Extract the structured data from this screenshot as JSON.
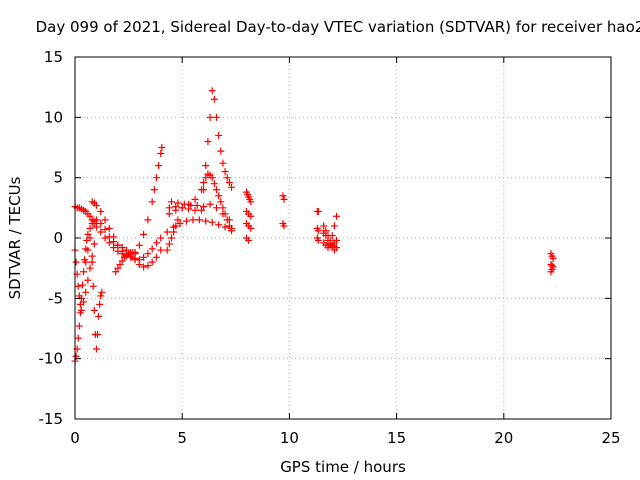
{
  "chart_data": {
    "type": "scatter",
    "title": "Day 099 of 2021, Sidereal Day-to-day VTEC variation (SDTVAR) for receiver hao2",
    "xlabel": "GPS time / hours",
    "ylabel": "SDTVAR / TECUs",
    "xlim": [
      0,
      25
    ],
    "ylim": [
      -15,
      15
    ],
    "x_ticks": [
      0,
      5,
      10,
      15,
      20,
      25
    ],
    "x_tick_labels": [
      "0",
      "5",
      "10",
      "15",
      "20",
      "25"
    ],
    "y_ticks": [
      -15,
      -10,
      -5,
      0,
      5,
      10,
      15
    ],
    "y_tick_labels": [
      "-15",
      "-10",
      "-5",
      "0",
      "5",
      "10",
      "15"
    ],
    "grid": true,
    "legend": "none",
    "marker": "plus",
    "color": "#ff0000",
    "series": [
      {
        "x": [
          0.0,
          0.1,
          0.2,
          0.3,
          0.4,
          0.5,
          0.6,
          0.7,
          0.8,
          0.9,
          1.0,
          1.2,
          1.4,
          1.6,
          1.8,
          2.0,
          2.2,
          2.4,
          2.6,
          2.8,
          3.0,
          3.2,
          3.4,
          3.6,
          3.8,
          4.0,
          4.3,
          4.6,
          4.9,
          5.2,
          5.5,
          5.8,
          6.1,
          6.4,
          6.7,
          7.0,
          7.3
        ],
        "y": [
          2.6,
          2.5,
          2.5,
          2.4,
          2.3,
          2.2,
          2.0,
          1.8,
          1.5,
          1.2,
          0.9,
          0.5,
          0.0,
          -0.4,
          -0.8,
          -1.1,
          -1.3,
          -1.5,
          -1.6,
          -1.7,
          -1.8,
          -1.6,
          -1.3,
          -0.9,
          -0.4,
          0.0,
          0.5,
          0.9,
          1.2,
          1.4,
          1.5,
          1.5,
          1.4,
          1.3,
          1.1,
          0.9,
          0.8
        ]
      },
      {
        "x": [
          0.0,
          0.05,
          0.1,
          0.15,
          0.2,
          0.25,
          0.3,
          0.35,
          0.4,
          0.45,
          0.5,
          0.55,
          0.6,
          0.7,
          0.8,
          0.9,
          1.0,
          1.2,
          1.4,
          1.6,
          1.8,
          2.0,
          2.2,
          2.4,
          2.6,
          2.8,
          3.0,
          3.2,
          3.4,
          3.6,
          3.8,
          4.0
        ],
        "y": [
          -10.2,
          -9.8,
          -9.2,
          -8.3,
          -7.3,
          -6.2,
          -5.0,
          -3.9,
          -2.8,
          -1.8,
          -0.9,
          -0.2,
          0.3,
          0.8,
          1.2,
          1.4,
          1.5,
          1.2,
          0.7,
          0.1,
          -0.3,
          -0.6,
          -0.8,
          -1.0,
          -1.3,
          -1.8,
          -2.2,
          -2.4,
          -2.3,
          -2.0,
          -1.6,
          -1.0
        ]
      },
      {
        "x": [
          0.0,
          0.05,
          0.1,
          0.15,
          0.2,
          0.25,
          0.3,
          0.4,
          0.5,
          0.6,
          0.7,
          0.8,
          0.9
        ],
        "y": [
          -1.0,
          -2.0,
          -3.0,
          -4.0,
          -4.8,
          -5.5,
          -6.0,
          -5.3,
          -4.5,
          -3.5,
          -2.5,
          -1.5,
          -0.5
        ]
      },
      {
        "x": [
          0.5,
          0.6,
          0.7,
          0.8,
          0.85,
          0.9,
          0.95,
          1.0,
          1.05,
          1.1,
          1.15,
          1.2,
          1.25
        ],
        "y": [
          -2.0,
          -1.0,
          0.0,
          -2.0,
          -4.0,
          -6.0,
          -8.0,
          -9.2,
          -8.0,
          -6.5,
          -5.5,
          -4.8,
          -4.5
        ]
      },
      {
        "x": [
          0.8,
          0.9,
          1.0,
          1.2,
          1.4,
          1.6,
          1.8,
          2.0,
          2.2,
          2.4,
          2.6,
          2.8,
          3.0,
          3.2,
          3.4,
          3.6,
          3.7,
          3.8,
          3.9,
          4.0,
          4.05
        ],
        "y": [
          3.0,
          2.9,
          2.7,
          2.2,
          1.5,
          0.8,
          0.1,
          -0.6,
          -1.1,
          -1.4,
          -1.5,
          -1.2,
          -0.6,
          0.3,
          1.5,
          3.0,
          4.0,
          5.0,
          6.0,
          7.0,
          7.5
        ]
      },
      {
        "x": [
          1.9,
          2.0,
          2.1,
          2.2,
          2.3,
          2.4,
          2.5,
          2.6,
          2.7,
          2.8
        ],
        "y": [
          -2.8,
          -2.5,
          -2.2,
          -1.9,
          -1.6,
          -1.4,
          -1.3,
          -1.2,
          -1.2,
          -1.3
        ]
      },
      {
        "x": [
          4.4,
          4.7,
          5.0,
          5.3,
          5.6,
          5.9,
          6.0,
          6.1,
          6.2,
          6.3,
          6.4,
          6.5,
          6.6,
          6.7,
          6.8,
          6.9,
          7.0,
          7.1,
          7.2,
          7.3
        ],
        "y": [
          2.5,
          2.6,
          2.5,
          2.4,
          2.3,
          2.3,
          4.0,
          6.0,
          8.0,
          10.0,
          12.2,
          11.5,
          10.0,
          8.5,
          7.2,
          6.2,
          5.5,
          5.0,
          4.6,
          4.2
        ]
      },
      {
        "x": [
          4.4,
          4.7,
          5.0,
          5.3,
          5.6,
          5.9,
          6.0,
          6.1,
          6.2,
          6.3,
          6.4,
          6.5,
          6.6,
          6.7,
          6.8,
          6.9,
          7.0,
          7.1,
          7.2,
          7.3
        ],
        "y": [
          2.0,
          2.3,
          2.5,
          2.8,
          3.2,
          4.0,
          4.6,
          5.0,
          5.3,
          5.2,
          5.0,
          4.5,
          4.0,
          3.5,
          3.0,
          2.5,
          2.0,
          1.5,
          1.0,
          0.6
        ]
      },
      {
        "x": [
          4.5,
          4.8,
          5.1,
          5.4,
          5.7,
          6.0,
          6.3,
          6.6,
          6.9,
          7.2
        ],
        "y": [
          3.0,
          2.9,
          2.8,
          2.7,
          2.7,
          2.6,
          2.8,
          2.5,
          2.0,
          1.5
        ]
      },
      {
        "x": [
          4.3,
          4.4,
          4.5,
          4.6,
          4.7,
          4.8
        ],
        "y": [
          -1.0,
          -0.5,
          0.0,
          0.5,
          1.0,
          1.5
        ]
      },
      {
        "x": [
          8.0,
          8.05,
          8.1,
          8.15,
          8.2,
          8.0,
          8.1,
          8.2,
          8.0,
          8.1,
          8.2,
          8.0,
          8.1
        ],
        "y": [
          3.8,
          3.6,
          3.4,
          3.2,
          3.0,
          2.2,
          2.0,
          1.8,
          1.2,
          1.0,
          0.8,
          0.0,
          -0.2
        ]
      },
      {
        "x": [
          9.7,
          9.75,
          9.7,
          9.75
        ],
        "y": [
          3.5,
          3.2,
          1.2,
          1.0
        ]
      },
      {
        "x": [
          11.3,
          11.35,
          11.3,
          11.35,
          11.3,
          11.35
        ],
        "y": [
          2.2,
          2.2,
          0.8,
          0.6,
          0.0,
          -0.2
        ]
      },
      {
        "x": [
          11.6,
          11.7,
          11.8,
          11.9,
          12.0,
          12.1,
          12.2,
          11.6,
          11.7,
          11.8,
          11.9,
          12.0,
          12.1,
          12.2,
          11.6,
          11.7,
          11.8,
          11.9,
          12.0,
          12.1,
          12.2
        ],
        "y": [
          1.0,
          0.6,
          0.2,
          -0.2,
          -0.6,
          -1.0,
          -0.8,
          -0.4,
          -0.6,
          -0.8,
          -0.6,
          0.2,
          1.0,
          1.8,
          0.4,
          0.2,
          -0.2,
          -0.5,
          -0.7,
          -0.4,
          -0.2
        ]
      },
      {
        "x": [
          22.2,
          22.25,
          22.3,
          22.2,
          22.25,
          22.3,
          22.2,
          22.25
        ],
        "y": [
          -1.3,
          -1.5,
          -1.7,
          -2.2,
          -2.3,
          -2.4,
          -2.8,
          -2.6
        ]
      }
    ]
  }
}
